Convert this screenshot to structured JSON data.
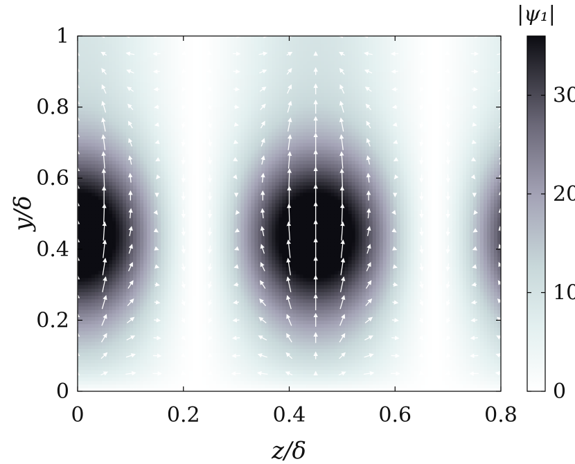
{
  "chart_data": {
    "type": "heatmap",
    "subtype": "heatmap-with-quiver",
    "title": "",
    "xlabel": "z/δ",
    "ylabel": "y/δ",
    "xlim": [
      0,
      0.8
    ],
    "ylim": [
      0,
      1
    ],
    "x_ticks": [
      0,
      0.2,
      0.4,
      0.6,
      0.8
    ],
    "x_tick_labels": [
      "0",
      "0.2",
      "0.4",
      "0.6",
      "0.8"
    ],
    "y_ticks": [
      0,
      0.2,
      0.4,
      0.6,
      0.8,
      1
    ],
    "y_tick_labels": [
      "0",
      "0.2",
      "0.4",
      "0.6",
      "0.8",
      "1"
    ],
    "grid": false,
    "colormap": "bone (reversed)",
    "colors": {
      "low": "#ffffff",
      "mid_low": "#d8eaea",
      "mid": "#a09eb2",
      "high": "#111118",
      "arrows": "#ffffff"
    },
    "colorbar": {
      "title": "|ψ₁|",
      "range": [
        0,
        36
      ],
      "ticks": [
        0,
        10,
        20,
        30
      ],
      "tick_labels": [
        "0",
        "10",
        "20",
        "30"
      ],
      "placement": "right"
    },
    "field": {
      "quantity": "|ψ₁|",
      "spanwise_period": 0.45,
      "peak_centers": [
        {
          "z": 0.0,
          "y": 0.44
        },
        {
          "z": 0.45,
          "y": 0.44
        },
        {
          "z": 0.9,
          "y": 0.44
        }
      ],
      "peak_value": 36,
      "min_lines_z": [
        0.225,
        0.675
      ]
    },
    "quiver": {
      "column_spacing_z": 0.05,
      "row_spacing_y": 0.05,
      "color": "white",
      "description": "velocity vectors pointing upward along the cores (z = 0, 0.45) and tilting toward them away from the cores"
    }
  }
}
